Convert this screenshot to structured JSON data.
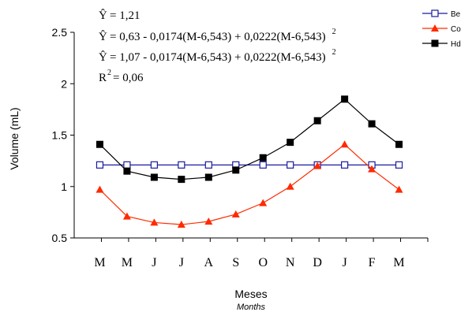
{
  "chart_data": {
    "type": "line",
    "categories": [
      "M",
      "M",
      "J",
      "J",
      "A",
      "S",
      "O",
      "N",
      "D",
      "J",
      "F",
      "M"
    ],
    "xlabel": "Meses",
    "xlabel_en": "Months",
    "ylabel": "Volume (mL)",
    "ylim": [
      0.5,
      2.5
    ],
    "yticks": [
      "0.5",
      "1",
      "1.5",
      "2",
      "2.5"
    ],
    "grid": false,
    "legend_position": "top-right",
    "series": [
      {
        "name": "Be",
        "color": "#1a1aa0",
        "marker": "square-open",
        "values": [
          1.21,
          1.21,
          1.21,
          1.21,
          1.21,
          1.21,
          1.21,
          1.21,
          1.21,
          1.21,
          1.21,
          1.21
        ]
      },
      {
        "name": "Co",
        "color": "#ff2a00",
        "marker": "triangle-filled",
        "values": [
          0.97,
          0.71,
          0.65,
          0.63,
          0.66,
          0.73,
          0.84,
          1.0,
          1.2,
          1.41,
          1.17,
          0.97
        ]
      },
      {
        "name": "Hd",
        "color": "#000000",
        "marker": "square-filled",
        "values": [
          1.41,
          1.15,
          1.09,
          1.07,
          1.09,
          1.16,
          1.28,
          1.43,
          1.64,
          1.85,
          1.61,
          1.41
        ]
      }
    ],
    "annotations": [
      {
        "hat": "Ŷ",
        "text": "= 1,21",
        "sup": ""
      },
      {
        "hat": "Ŷ",
        "text": "= 0,63 - 0,0174(M-6,543) + 0,0222(M-6,543)",
        "sup": "2"
      },
      {
        "hat": "Ŷ",
        "text": "= 1,07 - 0,0174(M-6,543) + 0,0222(M-6,543)",
        "sup": "2"
      },
      {
        "hat": "R",
        "text": "= 0,06",
        "sup": "2"
      }
    ]
  }
}
